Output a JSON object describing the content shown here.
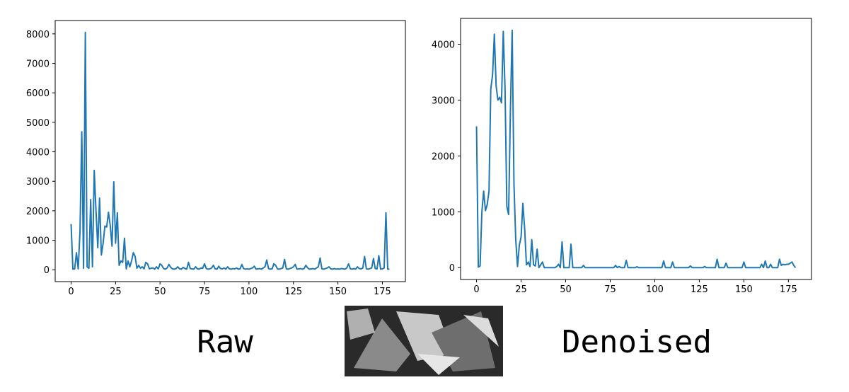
{
  "chart_data": [
    {
      "type": "line",
      "title": "Raw",
      "x": [
        0,
        1,
        2,
        3,
        4,
        5,
        6,
        7,
        8,
        9,
        10,
        11,
        12,
        13,
        14,
        15,
        16,
        17,
        18,
        19,
        20,
        21,
        22,
        23,
        24,
        25,
        26,
        27,
        28,
        29,
        30,
        31,
        32,
        33,
        34,
        35,
        36,
        37,
        38,
        39,
        40,
        41,
        42,
        43,
        44,
        45,
        46,
        47,
        48,
        49,
        50,
        51,
        52,
        53,
        54,
        55,
        56,
        57,
        58,
        59,
        60,
        61,
        62,
        63,
        64,
        65,
        66,
        67,
        68,
        69,
        70,
        71,
        72,
        73,
        74,
        75,
        76,
        77,
        78,
        79,
        80,
        81,
        82,
        83,
        84,
        85,
        86,
        87,
        88,
        89,
        90,
        91,
        92,
        93,
        94,
        95,
        96,
        97,
        98,
        99,
        100,
        101,
        102,
        103,
        104,
        105,
        106,
        107,
        108,
        109,
        110,
        111,
        112,
        113,
        114,
        115,
        116,
        117,
        118,
        119,
        120,
        121,
        122,
        123,
        124,
        125,
        126,
        127,
        128,
        129,
        130,
        131,
        132,
        133,
        134,
        135,
        136,
        137,
        138,
        139,
        140,
        141,
        142,
        143,
        144,
        145,
        146,
        147,
        148,
        149,
        150,
        151,
        152,
        153,
        154,
        155,
        156,
        157,
        158,
        159,
        160,
        161,
        162,
        163,
        164,
        165,
        166,
        167,
        168,
        169,
        170,
        171,
        172,
        173,
        174,
        175,
        176,
        177,
        178,
        179
      ],
      "series": [
        {
          "color": "#1f77b4",
          "values": [
            1550,
            20,
            30,
            580,
            30,
            1300,
            4680,
            50,
            8050,
            100,
            50,
            2380,
            100,
            3370,
            2000,
            750,
            2430,
            500,
            900,
            1480,
            1450,
            1950,
            1500,
            800,
            2980,
            900,
            1930,
            150,
            300,
            250,
            1070,
            30,
            300,
            100,
            300,
            580,
            450,
            50,
            150,
            50,
            100,
            30,
            250,
            200,
            30,
            50,
            60,
            20,
            100,
            30,
            200,
            150,
            40,
            20,
            60,
            180,
            80,
            30,
            20,
            40,
            100,
            30,
            20,
            80,
            40,
            20,
            250,
            40,
            30,
            20,
            100,
            30,
            20,
            60,
            50,
            200,
            40,
            20,
            30,
            60,
            150,
            30,
            20,
            120,
            40,
            30,
            60,
            20,
            100,
            30,
            20,
            40,
            30,
            60,
            20,
            30,
            180,
            40,
            20,
            30,
            20,
            40,
            60,
            120,
            20,
            30,
            40,
            20,
            60,
            100,
            330,
            40,
            20,
            30,
            200,
            150,
            30,
            20,
            40,
            60,
            350,
            30,
            20,
            40,
            60,
            100,
            180,
            20,
            30,
            40,
            20,
            40,
            150,
            60,
            20,
            30,
            40,
            20,
            60,
            100,
            400,
            30,
            20,
            40,
            60,
            100,
            30,
            20,
            40,
            20,
            30,
            20,
            40,
            30,
            20,
            60,
            200,
            30,
            20,
            40,
            20,
            100,
            40,
            30,
            60,
            450,
            30,
            20,
            40,
            60,
            380,
            40,
            30,
            480,
            20,
            30,
            60,
            1930,
            20,
            20
          ]
        }
      ],
      "xlim": [
        -8.95,
        187.95
      ],
      "xticks": [
        0,
        25,
        50,
        75,
        100,
        125,
        150,
        175
      ],
      "ylim": [
        -402.5,
        8452.5
      ],
      "yticks": [
        0,
        1000,
        2000,
        3000,
        4000,
        5000,
        6000,
        7000,
        8000
      ]
    },
    {
      "type": "line",
      "title": "Denoised",
      "x": [
        0,
        1,
        2,
        3,
        4,
        5,
        6,
        7,
        8,
        9,
        10,
        11,
        12,
        13,
        14,
        15,
        16,
        17,
        18,
        19,
        20,
        21,
        22,
        23,
        24,
        25,
        26,
        27,
        28,
        29,
        30,
        31,
        32,
        33,
        34,
        35,
        36,
        37,
        38,
        39,
        40,
        41,
        42,
        43,
        44,
        45,
        46,
        47,
        48,
        49,
        50,
        51,
        52,
        53,
        54,
        55,
        56,
        57,
        58,
        59,
        60,
        61,
        62,
        63,
        64,
        65,
        66,
        67,
        68,
        69,
        70,
        71,
        72,
        73,
        74,
        75,
        76,
        77,
        78,
        79,
        80,
        81,
        82,
        83,
        84,
        85,
        86,
        87,
        88,
        89,
        90,
        91,
        92,
        93,
        94,
        95,
        96,
        97,
        98,
        99,
        100,
        101,
        102,
        103,
        104,
        105,
        106,
        107,
        108,
        109,
        110,
        111,
        112,
        113,
        114,
        115,
        116,
        117,
        118,
        119,
        120,
        121,
        122,
        123,
        124,
        125,
        126,
        127,
        128,
        129,
        130,
        131,
        132,
        133,
        134,
        135,
        136,
        137,
        138,
        139,
        140,
        141,
        142,
        143,
        144,
        145,
        146,
        147,
        148,
        149,
        150,
        151,
        152,
        153,
        154,
        155,
        156,
        157,
        158,
        159,
        160,
        161,
        162,
        163,
        164,
        165,
        166,
        167,
        168,
        169,
        170,
        171,
        172,
        173,
        174,
        175,
        176,
        177,
        178,
        179
      ],
      "series": [
        {
          "color": "#1f77b4",
          "values": [
            2530,
            10,
            30,
            1000,
            1370,
            1020,
            1130,
            1370,
            3200,
            3450,
            4180,
            3250,
            3000,
            3050,
            2950,
            4230,
            3200,
            1100,
            950,
            2800,
            4250,
            1500,
            500,
            20,
            400,
            550,
            1150,
            700,
            50,
            100,
            20,
            500,
            50,
            30,
            330,
            0,
            50,
            100,
            0,
            0,
            0,
            0,
            0,
            0,
            0,
            20,
            60,
            0,
            460,
            0,
            0,
            0,
            0,
            420,
            0,
            0,
            0,
            0,
            0,
            0,
            40,
            0,
            0,
            0,
            0,
            0,
            0,
            0,
            0,
            0,
            0,
            0,
            0,
            0,
            0,
            0,
            0,
            0,
            40,
            0,
            20,
            0,
            0,
            0,
            130,
            0,
            0,
            0,
            0,
            0,
            15,
            0,
            0,
            0,
            0,
            0,
            0,
            0,
            0,
            0,
            0,
            0,
            0,
            0,
            0,
            120,
            0,
            0,
            0,
            0,
            100,
            0,
            0,
            0,
            0,
            0,
            0,
            0,
            0,
            0,
            30,
            0,
            0,
            0,
            0,
            0,
            0,
            0,
            20,
            0,
            0,
            0,
            0,
            0,
            0,
            150,
            0,
            0,
            0,
            0,
            80,
            0,
            0,
            0,
            0,
            0,
            0,
            0,
            0,
            0,
            100,
            0,
            0,
            0,
            0,
            0,
            0,
            0,
            0,
            0,
            60,
            0,
            120,
            0,
            0,
            60,
            0,
            0,
            0,
            0,
            150,
            40,
            60,
            50,
            60,
            60,
            80,
            100,
            40,
            0
          ]
        }
      ],
      "xlim": [
        -8.95,
        187.95
      ],
      "xticks": [
        0,
        25,
        50,
        75,
        100,
        125,
        150,
        175
      ],
      "ylim": [
        -212.5,
        4462.5
      ],
      "yticks": [
        0,
        1000,
        2000,
        3000,
        4000
      ]
    }
  ]
}
